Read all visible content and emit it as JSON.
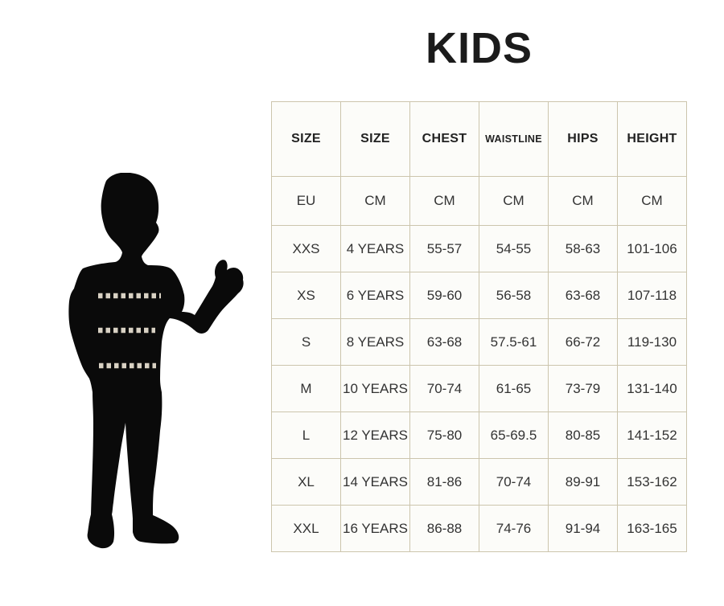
{
  "title": "KIDS",
  "chart_data": {
    "type": "table",
    "title": "KIDS",
    "columns": [
      "SIZE",
      "SIZE",
      "CHEST",
      "WAISTLINE",
      "HIPS",
      "HEIGHT"
    ],
    "units": [
      "EU",
      "CM",
      "CM",
      "CM",
      "CM",
      "CM"
    ],
    "rows": [
      [
        "XXS",
        "4 YEARS",
        "55-57",
        "54-55",
        "58-63",
        "101-106"
      ],
      [
        "XS",
        "6 YEARS",
        "59-60",
        "56-58",
        "63-68",
        "107-118"
      ],
      [
        "S",
        "8 YEARS",
        "63-68",
        "57.5-61",
        "66-72",
        "119-130"
      ],
      [
        "M",
        "10 YEARS",
        "70-74",
        "61-65",
        "73-79",
        "131-140"
      ],
      [
        "L",
        "12 YEARS",
        "75-80",
        "65-69.5",
        "80-85",
        "141-152"
      ],
      [
        "XL",
        "14 YEARS",
        "81-86",
        "70-74",
        "89-91",
        "153-162"
      ],
      [
        "XXL",
        "16 YEARS",
        "86-88",
        "74-76",
        "91-94",
        "163-165"
      ]
    ],
    "grid": true,
    "legend_position": "none"
  },
  "figure": {
    "description": "black silhouette of a boy giving a thumbs up, hand in pocket",
    "measurement_lines": [
      "chest",
      "waistline",
      "hips"
    ]
  },
  "colors": {
    "background": "#ffffff",
    "table_border": "#ccc5ad",
    "cell_background": "#fcfcf9",
    "text": "#333333",
    "title_text": "#1b1b1b",
    "silhouette": "#0a0a0a",
    "measurement_dash": "#d8d1c3"
  }
}
